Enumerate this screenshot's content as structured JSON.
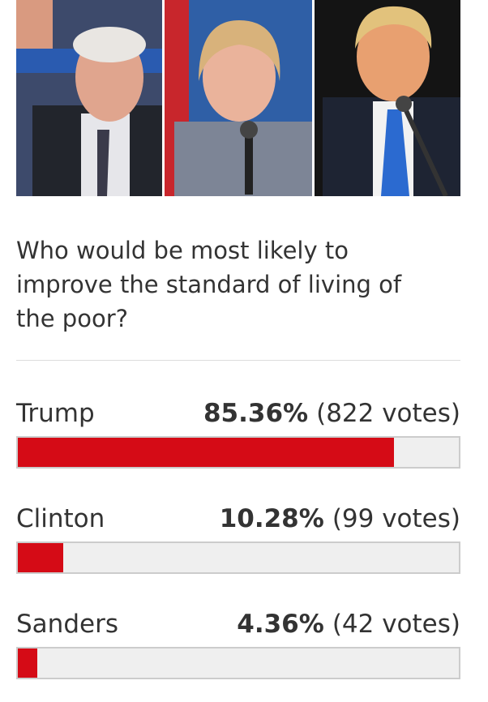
{
  "question": "Who would be most likely to improve the standard of living of the poor?",
  "options": [
    {
      "name": "Trump",
      "value": 85.36,
      "value_label": "85.36%",
      "votes_label": "(822 votes)"
    },
    {
      "name": "Clinton",
      "value": 10.28,
      "value_label": "10.28%",
      "votes_label": "(99 votes)"
    },
    {
      "name": "Sanders",
      "value": 4.36,
      "value_label": "4.36%",
      "votes_label": "(42 votes)"
    }
  ]
}
